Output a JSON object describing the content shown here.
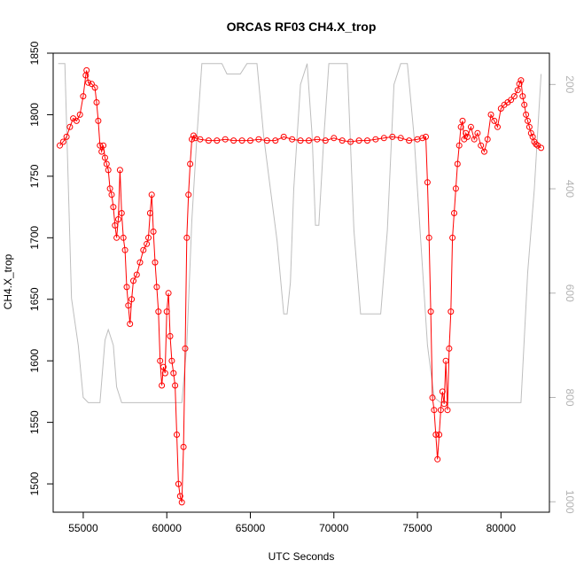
{
  "chart_data": {
    "type": "scatter",
    "title": "ORCAS RF03 CH4.X_trop",
    "xlabel": "UTC Seconds",
    "ylabel": "CH4.X_trop",
    "xlim": [
      53200,
      82900
    ],
    "ylim": [
      1477,
      1850
    ],
    "y2lim": [
      1020,
      140
    ],
    "x_ticks": [
      55000,
      60000,
      65000,
      70000,
      75000,
      80000
    ],
    "y_ticks": [
      1500,
      1550,
      1600,
      1650,
      1700,
      1750,
      1800,
      1850
    ],
    "y2_ticks": [
      200,
      400,
      600,
      800,
      1000
    ],
    "colors": {
      "series": "#ff0000",
      "secondary": "#bebebe",
      "axis": "#000000",
      "right_axis": "#b3b3b3"
    },
    "series": [
      {
        "color": "#ff0000",
        "marker": "open-circle",
        "x": [
          53600,
          53800,
          54000,
          54200,
          54400,
          54600,
          54800,
          55000,
          55150,
          55200,
          55300,
          55500,
          55700,
          55800,
          55900,
          56000,
          56100,
          56200,
          56300,
          56400,
          56500,
          56600,
          56700,
          56800,
          56900,
          57000,
          57100,
          57200,
          57300,
          57400,
          57500,
          57600,
          57700,
          57800,
          57900,
          58000,
          58200,
          58400,
          58600,
          58800,
          58900,
          59000,
          59100,
          59200,
          59300,
          59400,
          59500,
          59600,
          59700,
          59800,
          59900,
          60000,
          60100,
          60200,
          60300,
          60400,
          60500,
          60600,
          60700,
          60800,
          60900,
          61000,
          61100,
          61200,
          61300,
          61400,
          61500,
          61600,
          61700,
          62000,
          62500,
          63000,
          63500,
          64000,
          64500,
          65000,
          65500,
          66000,
          66500,
          67000,
          67500,
          68000,
          68500,
          69000,
          69500,
          70000,
          70500,
          71000,
          71500,
          72000,
          72500,
          73000,
          73500,
          74000,
          74500,
          75000,
          75300,
          75500,
          75600,
          75700,
          75800,
          75900,
          76000,
          76100,
          76200,
          76300,
          76400,
          76500,
          76600,
          76700,
          76800,
          76900,
          77000,
          77100,
          77200,
          77300,
          77400,
          77500,
          77600,
          77700,
          77800,
          77900,
          78000,
          78200,
          78400,
          78600,
          78800,
          79000,
          79200,
          79400,
          79600,
          79800,
          80000,
          80200,
          80400,
          80600,
          80800,
          81000,
          81100,
          81200,
          81300,
          81400,
          81500,
          81600,
          81700,
          81800,
          81900,
          82000,
          82100,
          82200,
          82400
        ],
        "y": [
          1775,
          1778,
          1782,
          1790,
          1797,
          1795,
          1800,
          1815,
          1832,
          1836,
          1826,
          1825,
          1822,
          1810,
          1795,
          1775,
          1770,
          1775,
          1765,
          1760,
          1755,
          1740,
          1735,
          1725,
          1710,
          1700,
          1715,
          1755,
          1720,
          1700,
          1690,
          1660,
          1645,
          1630,
          1650,
          1665,
          1670,
          1680,
          1690,
          1695,
          1700,
          1720,
          1735,
          1705,
          1680,
          1660,
          1640,
          1600,
          1580,
          1595,
          1590,
          1640,
          1655,
          1620,
          1600,
          1590,
          1580,
          1540,
          1500,
          1490,
          1485,
          1530,
          1610,
          1700,
          1735,
          1760,
          1780,
          1783,
          1781,
          1780,
          1779,
          1779,
          1780,
          1779,
          1779,
          1779,
          1780,
          1779,
          1779,
          1782,
          1780,
          1779,
          1779,
          1780,
          1779,
          1781,
          1779,
          1778,
          1779,
          1779,
          1780,
          1781,
          1782,
          1781,
          1779,
          1780,
          1781,
          1782,
          1745,
          1700,
          1640,
          1570,
          1560,
          1540,
          1520,
          1540,
          1560,
          1575,
          1565,
          1600,
          1560,
          1610,
          1640,
          1700,
          1720,
          1740,
          1760,
          1775,
          1790,
          1795,
          1780,
          1785,
          1782,
          1790,
          1780,
          1785,
          1775,
          1770,
          1780,
          1800,
          1795,
          1790,
          1805,
          1808,
          1810,
          1812,
          1815,
          1820,
          1825,
          1828,
          1815,
          1808,
          1800,
          1795,
          1790,
          1785,
          1782,
          1778,
          1776,
          1775,
          1773
        ]
      }
    ],
    "secondary_series": {
      "color": "#bebebe",
      "x": [
        53500,
        53900,
        54300,
        54700,
        55000,
        55300,
        55600,
        56000,
        56300,
        56500,
        56800,
        57000,
        57300,
        57600,
        57900,
        58200,
        58500,
        58800,
        59100,
        59400,
        59700,
        60000,
        60300,
        60600,
        60900,
        61200,
        61500,
        61800,
        62100,
        62500,
        63000,
        63300,
        63600,
        64000,
        64400,
        64800,
        65000,
        65400,
        65800,
        66200,
        66600,
        67000,
        67200,
        67400,
        67600,
        68000,
        68400,
        68700,
        68900,
        69100,
        69400,
        69700,
        70000,
        70400,
        70800,
        71200,
        71600,
        72000,
        72400,
        72800,
        73200,
        73600,
        74000,
        74400,
        74800,
        75200,
        75600,
        76000,
        76400,
        76800,
        77200,
        77600,
        78000,
        78400,
        78800,
        79200,
        79600,
        80000,
        80400,
        80800,
        81200,
        81600,
        82000,
        82400
      ],
      "y": [
        160,
        160,
        610,
        700,
        800,
        810,
        810,
        810,
        690,
        670,
        700,
        780,
        810,
        810,
        810,
        810,
        810,
        810,
        810,
        810,
        810,
        810,
        810,
        810,
        810,
        700,
        460,
        300,
        160,
        160,
        160,
        160,
        180,
        180,
        180,
        160,
        160,
        160,
        300,
        400,
        500,
        640,
        640,
        580,
        400,
        200,
        160,
        300,
        470,
        470,
        300,
        160,
        160,
        160,
        160,
        480,
        640,
        640,
        640,
        640,
        480,
        200,
        160,
        160,
        300,
        500,
        700,
        800,
        810,
        810,
        810,
        810,
        810,
        810,
        810,
        810,
        810,
        810,
        810,
        810,
        810,
        560,
        400,
        180
      ]
    }
  }
}
